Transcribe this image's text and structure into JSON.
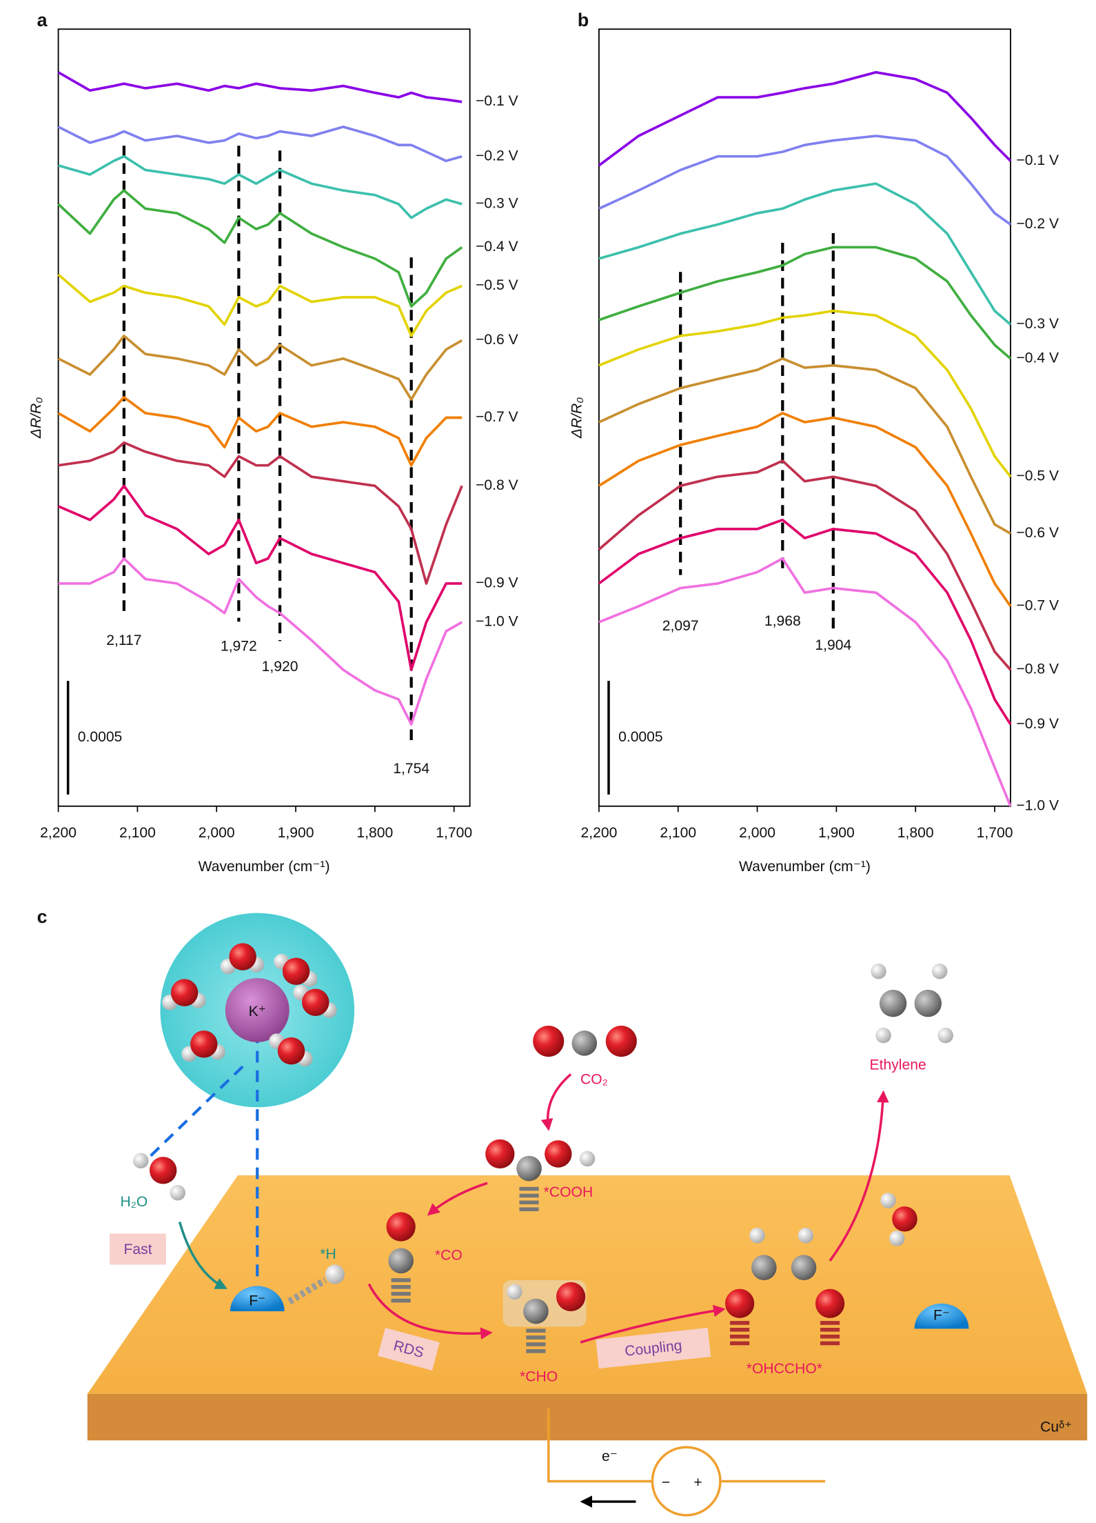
{
  "chart_data": [
    {
      "type": "line",
      "panel_label": "a",
      "x_label": "Wavenumber (cm⁻¹)",
      "y_label": "ΔR/R₀",
      "x": [
        2200,
        2160,
        2130,
        2117,
        2090,
        2050,
        2010,
        1990,
        1972,
        1950,
        1935,
        1920,
        1880,
        1840,
        1800,
        1770,
        1754,
        1735,
        1710,
        1690
      ],
      "xlim": [
        2200,
        1680
      ],
      "ylim": [
        0,
        0.00342
      ],
      "xticks": [
        {
          "value": 2200,
          "label": "2,200"
        },
        {
          "value": 2100,
          "label": "2,100"
        },
        {
          "value": 2000,
          "label": "2,000"
        },
        {
          "value": 1900,
          "label": "1,900"
        },
        {
          "value": 1800,
          "label": "1,800"
        },
        {
          "value": 1700,
          "label": "1,700"
        }
      ],
      "annotations": [
        {
          "value": 2117,
          "label": "2,117"
        },
        {
          "value": 1972,
          "label": "1,972"
        },
        {
          "value": 1920,
          "label": "1,920"
        },
        {
          "value": 1754,
          "label": "1,754"
        }
      ],
      "scale_bar": 0.0005,
      "series": [
        {
          "name": "−0.1 V",
          "color": "#8a00e6",
          "values": [
            0.00323,
            0.00315,
            0.00317,
            0.00318,
            0.00316,
            0.00318,
            0.00315,
            0.00317,
            0.00316,
            0.00318,
            0.00317,
            0.00316,
            0.00315,
            0.00317,
            0.00314,
            0.00312,
            0.00314,
            0.00312,
            0.00311,
            0.0031
          ]
        },
        {
          "name": "−0.2 V",
          "color": "#8080f0",
          "values": [
            0.00299,
            0.00292,
            0.00295,
            0.00297,
            0.00293,
            0.00295,
            0.00292,
            0.00293,
            0.00296,
            0.00294,
            0.00295,
            0.00297,
            0.00295,
            0.00299,
            0.00295,
            0.00291,
            0.00291,
            0.00288,
            0.00284,
            0.00286
          ]
        },
        {
          "name": "−0.3  V",
          "color": "#3cc0ac",
          "values": [
            0.00282,
            0.00278,
            0.00284,
            0.00286,
            0.0028,
            0.00278,
            0.00276,
            0.00274,
            0.00278,
            0.00274,
            0.00277,
            0.0028,
            0.00274,
            0.00271,
            0.00269,
            0.00265,
            0.00259,
            0.00263,
            0.00267,
            0.00265
          ]
        },
        {
          "name": "−0.4 V",
          "color": "#3fae3f",
          "values": [
            0.00265,
            0.00252,
            0.00267,
            0.00271,
            0.00263,
            0.00261,
            0.00254,
            0.00248,
            0.00259,
            0.00254,
            0.00256,
            0.00261,
            0.00252,
            0.00246,
            0.00241,
            0.00235,
            0.0022,
            0.00226,
            0.00241,
            0.00246
          ]
        },
        {
          "name": "−0.5 V",
          "color": "#e2d300",
          "values": [
            0.00234,
            0.00222,
            0.00226,
            0.00229,
            0.00226,
            0.00224,
            0.0022,
            0.00212,
            0.00224,
            0.0022,
            0.00222,
            0.00229,
            0.00222,
            0.00224,
            0.00224,
            0.0022,
            0.00207,
            0.00218,
            0.00226,
            0.00229
          ]
        },
        {
          "name": "−0.6 V",
          "color": "#c88f30",
          "values": [
            0.00197,
            0.0019,
            0.00201,
            0.00207,
            0.00199,
            0.00197,
            0.00194,
            0.0019,
            0.00201,
            0.00194,
            0.00197,
            0.00203,
            0.00194,
            0.00197,
            0.00192,
            0.00188,
            0.00179,
            0.0019,
            0.00201,
            0.00205
          ]
        },
        {
          "name": "−0.7 V",
          "color": "#f07f00",
          "values": [
            0.00173,
            0.00165,
            0.00175,
            0.0018,
            0.00173,
            0.00171,
            0.00167,
            0.00158,
            0.00171,
            0.00165,
            0.00167,
            0.00173,
            0.00167,
            0.00169,
            0.00167,
            0.00162,
            0.0015,
            0.00162,
            0.00171,
            0.00171
          ]
        },
        {
          "name": "−0.8 V",
          "color": "#c0304f",
          "values": [
            0.0015,
            0.00152,
            0.00156,
            0.0016,
            0.00156,
            0.00152,
            0.0015,
            0.00145,
            0.00154,
            0.0015,
            0.0015,
            0.00154,
            0.00145,
            0.00143,
            0.00141,
            0.00132,
            0.00122,
            0.00098,
            0.00124,
            0.00141
          ]
        },
        {
          "name": "−0.9 V",
          "color": "#e0006a",
          "values": [
            0.00132,
            0.00126,
            0.00135,
            0.00141,
            0.00128,
            0.00122,
            0.00111,
            0.00115,
            0.00126,
            0.00107,
            0.00109,
            0.00118,
            0.00111,
            0.00107,
            0.00103,
            0.0009,
            0.0006,
            0.00081,
            0.00098,
            0.00098
          ]
        },
        {
          "name": "−1.0 V",
          "color": "#f070e0",
          "values": [
            0.00098,
            0.00098,
            0.00103,
            0.00109,
            0.001,
            0.00098,
            0.0009,
            0.00085,
            0.001,
            0.00092,
            0.00088,
            0.00085,
            0.00073,
            0.0006,
            0.00051,
            0.00047,
            0.00036,
            0.00056,
            0.00077,
            0.00081
          ]
        }
      ]
    },
    {
      "type": "line",
      "panel_label": "b",
      "x_label": "Wavenumber (cm⁻¹)",
      "y_label": "ΔR/R₀",
      "x": [
        2200,
        2150,
        2097,
        2050,
        2000,
        1968,
        1940,
        1904,
        1850,
        1800,
        1760,
        1730,
        1700,
        1680
      ],
      "xlim": [
        2200,
        1680
      ],
      "ylim": [
        0,
        0.00342
      ],
      "xticks": [
        {
          "value": 2200,
          "label": "2,200"
        },
        {
          "value": 2100,
          "label": "2,100"
        },
        {
          "value": 2000,
          "label": "2,000"
        },
        {
          "value": 1900,
          "label": "1,900"
        },
        {
          "value": 1800,
          "label": "1,800"
        },
        {
          "value": 1700,
          "label": "1,700"
        }
      ],
      "annotations": [
        {
          "value": 2097,
          "label": "2,097"
        },
        {
          "value": 1968,
          "label": "1,968"
        },
        {
          "value": 1904,
          "label": "1,904"
        }
      ],
      "scale_bar": 0.0005,
      "series": [
        {
          "name": "−0.1 V",
          "color": "#8a00e6",
          "values": [
            0.00282,
            0.00295,
            0.00304,
            0.00312,
            0.00312,
            0.00314,
            0.00316,
            0.00318,
            0.00323,
            0.0032,
            0.00314,
            0.00303,
            0.00291,
            0.00284
          ]
        },
        {
          "name": "−0.2 V",
          "color": "#8080f0",
          "values": [
            0.00263,
            0.00271,
            0.0028,
            0.00286,
            0.00286,
            0.00288,
            0.00291,
            0.00293,
            0.00295,
            0.00293,
            0.00286,
            0.00274,
            0.00261,
            0.00256
          ]
        },
        {
          "name": "−0.3 V",
          "color": "#3cc0ac",
          "values": [
            0.00241,
            0.00246,
            0.00252,
            0.00256,
            0.00261,
            0.00263,
            0.00267,
            0.00271,
            0.00274,
            0.00265,
            0.00252,
            0.00235,
            0.00218,
            0.00212
          ]
        },
        {
          "name": "−0.4 V",
          "color": "#3fae3f",
          "values": [
            0.00214,
            0.0022,
            0.00226,
            0.00231,
            0.00235,
            0.00238,
            0.00243,
            0.00246,
            0.00246,
            0.00241,
            0.00231,
            0.00216,
            0.00203,
            0.00197
          ]
        },
        {
          "name": "−0.5 V",
          "color": "#e2d300",
          "values": [
            0.00194,
            0.00201,
            0.00207,
            0.00209,
            0.00212,
            0.00215,
            0.00216,
            0.00218,
            0.00216,
            0.00207,
            0.00192,
            0.00175,
            0.00154,
            0.00145
          ]
        },
        {
          "name": "−0.6 V",
          "color": "#c88f30",
          "values": [
            0.00169,
            0.00177,
            0.00184,
            0.00188,
            0.00192,
            0.00197,
            0.00193,
            0.00194,
            0.00192,
            0.00184,
            0.00167,
            0.00145,
            0.00124,
            0.0012
          ]
        },
        {
          "name": "−0.7 V",
          "color": "#f07f00",
          "values": [
            0.00141,
            0.00152,
            0.00159,
            0.00163,
            0.00167,
            0.00173,
            0.00169,
            0.00171,
            0.00167,
            0.00158,
            0.00141,
            0.0012,
            0.00098,
            0.00088
          ]
        },
        {
          "name": "−0.8 V",
          "color": "#c0304f",
          "values": [
            0.00113,
            0.00128,
            0.00141,
            0.00145,
            0.00147,
            0.00152,
            0.00143,
            0.00145,
            0.00141,
            0.0013,
            0.00111,
            0.0009,
            0.00068,
            0.0006
          ]
        },
        {
          "name": "−0.9 V",
          "color": "#e0006a",
          "values": [
            0.00098,
            0.00111,
            0.00118,
            0.00122,
            0.00122,
            0.00126,
            0.00118,
            0.00122,
            0.0012,
            0.00111,
            0.00094,
            0.00073,
            0.00047,
            0.00036
          ]
        },
        {
          "name": "−1.0 V",
          "color": "#f070e0",
          "values": [
            0.00081,
            0.00088,
            0.00096,
            0.00098,
            0.00103,
            0.00109,
            0.00094,
            0.00096,
            0.00094,
            0.00081,
            0.00064,
            0.00043,
            0.00017,
            0
          ]
        }
      ]
    }
  ],
  "diagram": {
    "panel_label": "c",
    "k_ion": "K⁺",
    "water": "H₂O",
    "fast": "Fast",
    "fluoride_left": "F⁻",
    "h_ads": "*H",
    "co": "*CO",
    "rds": "RDS",
    "cho": "*CHO",
    "coupling": "Coupling",
    "ohccho": "*OHCCHO*",
    "cooh": "*COOH",
    "co2": "CO₂",
    "ethylene": "Ethylene",
    "fluoride_right": "F⁻",
    "substrate": "Cuᵟ⁺",
    "electron": "e⁻",
    "minus": "−",
    "plus": "+"
  }
}
